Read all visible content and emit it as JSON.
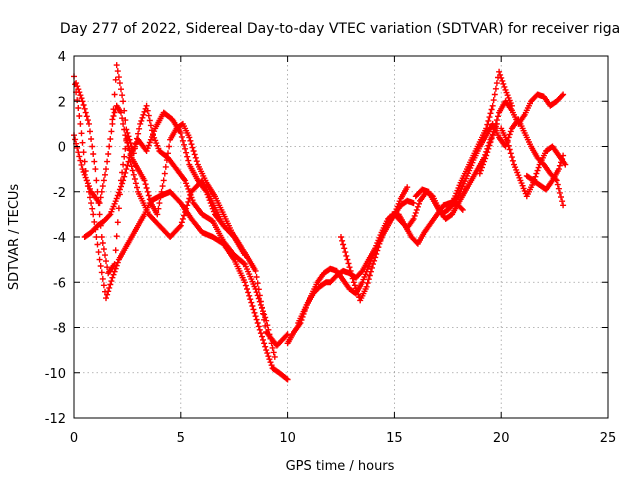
{
  "chart_data": {
    "type": "scatter",
    "title": "Day 277 of 2022, Sidereal Day-to-day VTEC variation (SDTVAR) for receiver riga",
    "xlabel": "GPS time / hours",
    "ylabel": "SDTVAR / TECUs",
    "xlim": [
      0,
      25
    ],
    "ylim": [
      -12,
      4
    ],
    "x_ticks": [
      "0",
      "5",
      "10",
      "15",
      "20",
      "25"
    ],
    "y_ticks": [
      "4",
      "2",
      "0",
      "-2",
      "-4",
      "-6",
      "-8",
      "-10",
      "-12"
    ],
    "x_tick_values": [
      0,
      5,
      10,
      15,
      20,
      25
    ],
    "y_tick_values": [
      4,
      2,
      0,
      -2,
      -4,
      -6,
      -8,
      -10,
      -12
    ],
    "grid": true,
    "marker": "plus",
    "color": "#ff0000",
    "series": [
      {
        "x": [
          0.0,
          0.3,
          0.6,
          0.9,
          1.2,
          1.5,
          1.8,
          2.1,
          2.4,
          2.7,
          3.0,
          3.3,
          3.6,
          4.0,
          4.5,
          5.0,
          5.5,
          6.0,
          6.5,
          7.0,
          7.5,
          8.0,
          8.5,
          9.0,
          9.3,
          9.6,
          10.0
        ],
        "y": [
          3.1,
          1.0,
          -1.5,
          -3.0,
          -5.0,
          -6.7,
          -5.8,
          -5.0,
          -4.5,
          -4.0,
          -3.5,
          -3.0,
          -2.4,
          -2.2,
          -2.0,
          -2.5,
          -3.2,
          -3.8,
          -4.0,
          -4.3,
          -5.0,
          -6.0,
          -7.5,
          -9.0,
          -9.8,
          -10.0,
          -10.3
        ]
      },
      {
        "x": [
          0.0,
          0.4,
          0.8,
          1.2,
          1.5,
          1.8,
          2.0,
          2.3,
          2.6,
          3.0,
          3.5,
          4.0,
          4.5,
          5.0,
          5.5,
          6.0,
          6.5,
          7.0,
          7.5,
          8.0,
          8.5,
          9.0,
          9.5,
          10.0
        ],
        "y": [
          0.5,
          -1.0,
          -2.0,
          -2.5,
          -1.0,
          1.0,
          3.6,
          2.0,
          -0.5,
          -2.0,
          -3.0,
          -3.5,
          -4.0,
          -3.5,
          -2.0,
          -1.5,
          -2.5,
          -3.5,
          -4.0,
          -4.7,
          -5.5,
          -8.2,
          -8.8,
          -8.3
        ]
      },
      {
        "x": [
          0.1,
          0.4,
          0.7,
          1.0,
          1.3,
          1.6,
          1.9,
          2.2,
          2.5,
          2.8,
          3.1,
          3.4,
          3.7,
          4.0,
          4.4,
          4.8,
          5.2,
          5.6,
          6.0,
          6.5,
          7.0,
          7.5,
          8.0,
          8.5,
          9.0,
          9.4
        ],
        "y": [
          2.8,
          2.0,
          1.0,
          -1.0,
          -4.0,
          -5.6,
          -5.2,
          -1.5,
          0.6,
          -0.3,
          1.0,
          1.8,
          0.5,
          -0.2,
          -0.5,
          -1.0,
          -1.5,
          -2.5,
          -3.0,
          -3.3,
          -4.2,
          -4.8,
          -5.2,
          -6.3,
          -7.7,
          -9.3
        ]
      },
      {
        "x": [
          0.5,
          0.8,
          1.1,
          1.4,
          1.7,
          2.0,
          2.3,
          2.6,
          3.0,
          3.4,
          3.8,
          4.2,
          4.6,
          5.0,
          5.4,
          5.8,
          6.2,
          6.6,
          7.0,
          7.5,
          8.0
        ],
        "y": [
          -4.0,
          -3.8,
          -3.5,
          -3.3,
          -3.0,
          -2.3,
          -1.5,
          -0.5,
          0.3,
          -0.2,
          0.8,
          1.5,
          1.2,
          0.6,
          -0.8,
          -1.5,
          -2.0,
          -3.0,
          -3.5,
          -4.0,
          -4.8
        ]
      },
      {
        "x": [
          1.8,
          2.0,
          2.2,
          2.4,
          2.7,
          3.0,
          3.3,
          3.6,
          3.9,
          4.2,
          4.5,
          4.8,
          5.1,
          5.4,
          5.8,
          6.2,
          6.6,
          7.0,
          7.4,
          7.8
        ],
        "y": [
          1.2,
          1.8,
          1.5,
          0.5,
          -0.5,
          -1.0,
          -1.5,
          -2.5,
          -3.0,
          -1.5,
          0.3,
          0.8,
          1.0,
          0.4,
          -0.8,
          -1.6,
          -2.2,
          -3.0,
          -3.8,
          -4.4
        ]
      },
      {
        "x": [
          10.0,
          10.3,
          10.6,
          10.9,
          11.2,
          11.5,
          11.8,
          12.0,
          12.3,
          12.6,
          12.9,
          13.2,
          13.5,
          13.8,
          14.1,
          14.4,
          14.7,
          15.0,
          15.3,
          15.6
        ],
        "y": [
          -8.7,
          -8.2,
          -7.8,
          -7.0,
          -6.5,
          -6.2,
          -6.0,
          -6.0,
          -5.7,
          -5.5,
          -5.6,
          -5.8,
          -5.5,
          -5.0,
          -4.5,
          -3.8,
          -3.2,
          -3.0,
          -2.3,
          -1.8
        ]
      },
      {
        "x": [
          10.5,
          10.8,
          11.1,
          11.4,
          11.7,
          12.0,
          12.3,
          12.6,
          12.9,
          13.2,
          13.5,
          13.8,
          14.1,
          14.4,
          14.7,
          15.0,
          15.3,
          15.6,
          15.9
        ],
        "y": [
          -7.8,
          -7.2,
          -6.6,
          -6.0,
          -5.6,
          -5.4,
          -5.5,
          -5.9,
          -6.3,
          -6.5,
          -6.0,
          -5.3,
          -4.6,
          -4.0,
          -3.5,
          -3.0,
          -2.6,
          -2.4,
          -2.5
        ]
      },
      {
        "x": [
          12.5,
          12.8,
          13.1,
          13.4,
          13.7,
          14.0,
          14.3,
          14.6,
          14.9,
          15.2,
          15.5,
          15.8,
          16.1,
          16.4,
          16.7,
          17.0,
          17.3,
          17.6,
          17.9,
          18.2
        ],
        "y": [
          -4.0,
          -5.0,
          -6.0,
          -6.8,
          -6.2,
          -5.2,
          -4.3,
          -3.5,
          -3.0,
          -3.0,
          -3.5,
          -4.0,
          -4.3,
          -3.8,
          -3.4,
          -3.0,
          -2.6,
          -2.5,
          -2.5,
          -2.8
        ]
      },
      {
        "x": [
          15.0,
          15.3,
          15.6,
          15.9,
          16.2,
          16.5,
          16.8,
          17.1,
          17.4,
          17.7,
          18.0,
          18.3,
          18.6,
          18.9,
          19.2,
          19.5,
          19.8
        ],
        "y": [
          -3.0,
          -3.3,
          -3.6,
          -3.2,
          -2.4,
          -2.0,
          -2.2,
          -2.8,
          -3.2,
          -3.0,
          -2.5,
          -2.0,
          -1.5,
          -1.0,
          -0.5,
          0.3,
          1.0
        ]
      },
      {
        "x": [
          16.0,
          16.3,
          16.6,
          16.9,
          17.2,
          17.5,
          17.8,
          18.1,
          18.4,
          18.7,
          19.0,
          19.3,
          19.6,
          19.9,
          20.2,
          20.5
        ],
        "y": [
          -2.2,
          -1.9,
          -2.0,
          -2.5,
          -3.0,
          -2.8,
          -2.3,
          -1.6,
          -1.0,
          -0.4,
          0.2,
          0.8,
          1.8,
          3.3,
          2.5,
          1.8
        ]
      },
      {
        "x": [
          17.5,
          17.8,
          18.1,
          18.4,
          18.7,
          19.0,
          19.3,
          19.6,
          19.9,
          20.2,
          20.5,
          20.8,
          21.1,
          21.4,
          21.7,
          22.0,
          22.3,
          22.6,
          22.9
        ],
        "y": [
          -2.8,
          -2.5,
          -2.0,
          -1.3,
          -0.6,
          0.0,
          0.5,
          1.0,
          0.4,
          0.0,
          0.8,
          1.2,
          0.6,
          0.0,
          -0.5,
          -0.8,
          -1.2,
          -1.5,
          -2.6
        ]
      },
      {
        "x": [
          19.0,
          19.3,
          19.6,
          19.9,
          20.2,
          20.5,
          20.8,
          21.1,
          21.4,
          21.7,
          22.0,
          22.3,
          22.6,
          22.9
        ],
        "y": [
          -1.2,
          -0.4,
          0.5,
          1.5,
          2.0,
          1.6,
          1.0,
          1.4,
          2.0,
          2.3,
          2.2,
          1.8,
          2.0,
          2.3
        ]
      },
      {
        "x": [
          20.0,
          20.3,
          20.6,
          20.9,
          21.2,
          21.5,
          21.8,
          22.1,
          22.4,
          22.7,
          23.0
        ],
        "y": [
          0.8,
          0.2,
          -0.8,
          -1.5,
          -2.2,
          -1.6,
          -0.8,
          -0.2,
          0.0,
          -0.4,
          -0.8
        ]
      },
      {
        "x": [
          21.2,
          21.5,
          21.8,
          22.1,
          22.4,
          22.7,
          22.9
        ],
        "y": [
          -1.3,
          -1.5,
          -1.7,
          -1.9,
          -1.5,
          -1.0,
          -0.4
        ]
      }
    ]
  }
}
